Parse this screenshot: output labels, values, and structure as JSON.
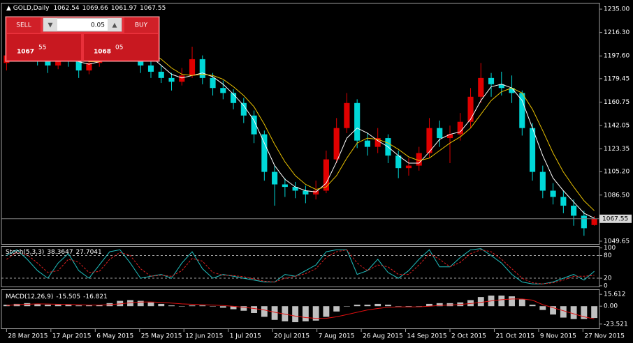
{
  "chart_data": {
    "type": "candlestick",
    "title": "GOLD,Daily",
    "up_color": "#e00000",
    "down_color": "#00d8d8",
    "xlim": [
      -0.5,
      57.5
    ],
    "xticks": [
      {
        "value": 0,
        "label": "28 Mar 2015"
      },
      {
        "value": 4.3,
        "label": "17 Apr 2015"
      },
      {
        "value": 8.6,
        "label": "6 May 2015"
      },
      {
        "value": 12.9,
        "label": "25 May 2015"
      },
      {
        "value": 17.2,
        "label": "12 Jun 2015"
      },
      {
        "value": 21.5,
        "label": "1 Jul 2015"
      },
      {
        "value": 25.8,
        "label": "20 Jul 2015"
      },
      {
        "value": 30.1,
        "label": "7 Aug 2015"
      },
      {
        "value": 34.4,
        "label": "26 Aug 2015"
      },
      {
        "value": 38.7,
        "label": "14 Sep 2015"
      },
      {
        "value": 43,
        "label": "2 Oct 2015"
      },
      {
        "value": 47.3,
        "label": "21 Oct 2015"
      },
      {
        "value": 51.6,
        "label": "9 Nov 2015"
      },
      {
        "value": 55.9,
        "label": "27 Nov 2015"
      }
    ],
    "ylim": [
      1047.4,
      1239.5
    ],
    "yticks": [
      {
        "value": 1235,
        "label": "1235.00"
      },
      {
        "value": 1216.3,
        "label": "1216.30"
      },
      {
        "value": 1197.6,
        "label": "1197.60"
      },
      {
        "value": 1179.45,
        "label": "1179.45"
      },
      {
        "value": 1160.75,
        "label": "1160.75"
      },
      {
        "value": 1142.05,
        "label": "1142.05"
      },
      {
        "value": 1123.35,
        "label": "1123.35"
      },
      {
        "value": 1105.2,
        "label": "1105.20"
      },
      {
        "value": 1086.5,
        "label": "1086.50"
      },
      {
        "value": 1049.65,
        "label": "1049.65"
      }
    ],
    "candles": [
      [
        1192,
        1204,
        1186,
        1198
      ],
      [
        1198,
        1206,
        1193,
        1200
      ],
      [
        1200,
        1208,
        1195,
        1202
      ],
      [
        1202,
        1205,
        1190,
        1196
      ],
      [
        1196,
        1199,
        1184,
        1190
      ],
      [
        1190,
        1204,
        1187,
        1200
      ],
      [
        1200,
        1203,
        1189,
        1195
      ],
      [
        1195,
        1198,
        1180,
        1186
      ],
      [
        1186,
        1196,
        1183,
        1192
      ],
      [
        1192,
        1202,
        1189,
        1198
      ],
      [
        1198,
        1213,
        1195,
        1208
      ],
      [
        1208,
        1218,
        1204,
        1212
      ],
      [
        1212,
        1215,
        1200,
        1205
      ],
      [
        1205,
        1207,
        1184,
        1190
      ],
      [
        1190,
        1194,
        1180,
        1185
      ],
      [
        1185,
        1190,
        1176,
        1180
      ],
      [
        1180,
        1184,
        1170,
        1177
      ],
      [
        1177,
        1188,
        1174,
        1182
      ],
      [
        1182,
        1205,
        1180,
        1195
      ],
      [
        1195,
        1198,
        1175,
        1180
      ],
      [
        1180,
        1184,
        1166,
        1172
      ],
      [
        1172,
        1178,
        1163,
        1168
      ],
      [
        1168,
        1171,
        1155,
        1160
      ],
      [
        1160,
        1164,
        1144,
        1150
      ],
      [
        1150,
        1154,
        1128,
        1135
      ],
      [
        1135,
        1138,
        1098,
        1105
      ],
      [
        1105,
        1110,
        1078,
        1095
      ],
      [
        1095,
        1100,
        1085,
        1093
      ],
      [
        1093,
        1097,
        1084,
        1090
      ],
      [
        1090,
        1094,
        1080,
        1087
      ],
      [
        1087,
        1098,
        1083,
        1090
      ],
      [
        1090,
        1122,
        1088,
        1115
      ],
      [
        1115,
        1148,
        1112,
        1140
      ],
      [
        1140,
        1168,
        1136,
        1160
      ],
      [
        1160,
        1163,
        1124,
        1130
      ],
      [
        1130,
        1136,
        1118,
        1125
      ],
      [
        1125,
        1140,
        1120,
        1132
      ],
      [
        1132,
        1135,
        1112,
        1118
      ],
      [
        1118,
        1122,
        1100,
        1108
      ],
      [
        1108,
        1116,
        1102,
        1110
      ],
      [
        1110,
        1125,
        1106,
        1120
      ],
      [
        1120,
        1148,
        1116,
        1140
      ],
      [
        1140,
        1146,
        1125,
        1132
      ],
      [
        1132,
        1142,
        1112,
        1135
      ],
      [
        1135,
        1152,
        1130,
        1145
      ],
      [
        1145,
        1172,
        1140,
        1165
      ],
      [
        1165,
        1192,
        1160,
        1180
      ],
      [
        1180,
        1184,
        1165,
        1175
      ],
      [
        1175,
        1185,
        1166,
        1172
      ],
      [
        1172,
        1182,
        1160,
        1168
      ],
      [
        1168,
        1170,
        1134,
        1140
      ],
      [
        1140,
        1144,
        1098,
        1105
      ],
      [
        1105,
        1110,
        1084,
        1090
      ],
      [
        1090,
        1096,
        1079,
        1085
      ],
      [
        1085,
        1090,
        1072,
        1078
      ],
      [
        1078,
        1083,
        1062,
        1070
      ],
      [
        1070,
        1074,
        1054,
        1060
      ],
      [
        1062.54,
        1069.66,
        1061.97,
        1067.55
      ]
    ],
    "overlays": [
      {
        "color": "#ffffff",
        "values": [
          1196,
          1198,
          1199,
          1199,
          1197,
          1196,
          1196,
          1193,
          1191,
          1193,
          1198,
          1204,
          1207,
          1204,
          1197,
          1190,
          1183,
          1180,
          1182,
          1184,
          1181,
          1175,
          1167,
          1158,
          1146,
          1128,
          1110,
          1099,
          1093,
          1090,
          1089,
          1096,
          1113,
          1132,
          1140,
          1136,
          1130,
          1125,
          1118,
          1112,
          1112,
          1121,
          1131,
          1135,
          1137,
          1147,
          1162,
          1173,
          1175,
          1172,
          1162,
          1140,
          1118,
          1100,
          1090,
          1081,
          1072,
          1068
        ]
      },
      {
        "color": "#e8c000",
        "values": [
          1194,
          1195,
          1197,
          1198,
          1198,
          1197,
          1196,
          1195,
          1193,
          1193,
          1195,
          1199,
          1203,
          1204,
          1201,
          1195,
          1188,
          1183,
          1182,
          1183,
          1182,
          1179,
          1173,
          1166,
          1157,
          1143,
          1127,
          1113,
          1102,
          1095,
          1091,
          1093,
          1102,
          1116,
          1128,
          1132,
          1131,
          1128,
          1123,
          1117,
          1114,
          1116,
          1122,
          1128,
          1133,
          1140,
          1151,
          1162,
          1169,
          1172,
          1168,
          1155,
          1138,
          1120,
          1105,
          1093,
          1082,
          1074
        ]
      }
    ],
    "stoch": {
      "label": "Stoch(5,3,3)",
      "ylim": [
        -2,
        103
      ],
      "yticks": [
        100,
        80,
        20,
        0
      ],
      "levels": [
        80,
        20
      ],
      "main_color": "#20c0c0",
      "signal_color": "#e02020",
      "main": [
        80,
        95,
        70,
        40,
        20,
        60,
        85,
        40,
        20,
        55,
        90,
        95,
        60,
        20,
        25,
        30,
        20,
        60,
        90,
        45,
        20,
        30,
        25,
        20,
        15,
        10,
        10,
        30,
        25,
        40,
        55,
        90,
        95,
        95,
        30,
        40,
        70,
        35,
        20,
        40,
        70,
        95,
        50,
        50,
        75,
        95,
        98,
        80,
        60,
        30,
        10,
        5,
        5,
        10,
        20,
        30,
        15,
        38.3647
      ],
      "signal": [
        70,
        88,
        82,
        60,
        35,
        40,
        70,
        62,
        35,
        38,
        70,
        88,
        80,
        45,
        25,
        28,
        25,
        40,
        72,
        65,
        35,
        28,
        27,
        24,
        18,
        12,
        10,
        20,
        25,
        32,
        45,
        75,
        90,
        95,
        60,
        40,
        55,
        50,
        30,
        30,
        55,
        85,
        70,
        50,
        62,
        85,
        95,
        90,
        70,
        45,
        20,
        8,
        5,
        8,
        15,
        25,
        25,
        27.7041
      ]
    },
    "macd": {
      "label": "MACD(12,26,9)",
      "ylim": [
        -29.2,
        21.3
      ],
      "yticks": [
        15.612,
        {
          "value": 0,
          "label": "0.00"
        },
        -23.521
      ],
      "hist_color": "#c0c0c0",
      "signal_color": "#e01010",
      "values": [
        2,
        3,
        4,
        3,
        2,
        2,
        2,
        1,
        1,
        2,
        4,
        7,
        8,
        7,
        5,
        3,
        1,
        0,
        1,
        1,
        0,
        -2,
        -4,
        -6,
        -9,
        -14,
        -18,
        -20,
        -21,
        -20,
        -19,
        -14,
        -7,
        0,
        2,
        2,
        3,
        2,
        0,
        -1,
        0,
        3,
        4,
        4,
        5,
        8,
        12,
        14,
        14,
        13,
        9,
        2,
        -5,
        -11,
        -15,
        -17,
        -17,
        -15.505
      ],
      "signal": [
        1,
        2,
        2.5,
        3,
        2.8,
        2.5,
        2.3,
        2,
        1.6,
        1.6,
        2,
        3,
        4.5,
        5.5,
        5.6,
        5,
        4,
        3,
        2.5,
        2,
        1.5,
        0.8,
        -0.2,
        -1.5,
        -3,
        -5,
        -8,
        -10.5,
        -13,
        -15,
        -16,
        -16,
        -14,
        -11,
        -8,
        -5,
        -3,
        -1.5,
        -1,
        -1,
        -0.8,
        0,
        1,
        1.6,
        2.2,
        3.5,
        5,
        7,
        8.5,
        9.5,
        9.5,
        8,
        2,
        -2,
        -6,
        -10,
        -14,
        -16.821
      ]
    }
  },
  "trade_panel": {
    "sell": "SELL",
    "buy": "BUY",
    "lot": "0.05",
    "bid_big": "1067",
    "bid_small": "55",
    "ask_big": "1068",
    "ask_small": "05"
  }
}
